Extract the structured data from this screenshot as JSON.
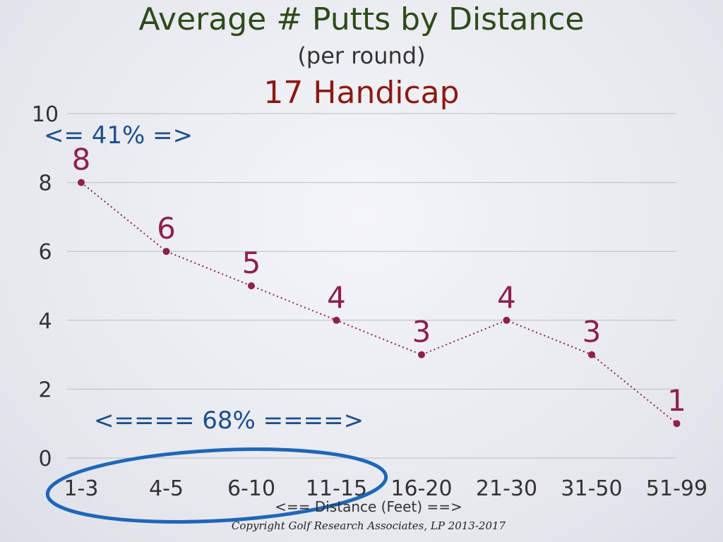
{
  "chart_data": {
    "type": "line",
    "title": "Average # Putts by Distance",
    "subtitle": "(per round)",
    "subtitle2": "17 Handicap",
    "xlabel": "<== Distance (Feet) ==>",
    "ylabel": "",
    "categories": [
      "1-3",
      "4-5",
      "6-10",
      "11-15",
      "16-20",
      "21-30",
      "31-50",
      "51-99"
    ],
    "values": [
      8,
      6,
      5,
      4,
      3,
      4,
      3,
      1
    ],
    "data_labels": [
      "8",
      "6",
      "5",
      "4",
      "3",
      "4",
      "3",
      "1"
    ],
    "yticks": [
      "0",
      "2",
      "4",
      "6",
      "8",
      "10"
    ],
    "ylim": [
      0,
      10
    ],
    "grid": true,
    "annotations": {
      "short_range": "<= 41% =>",
      "mid_range": "<==== 68% ====>"
    },
    "copyright": "Copyright Golf Research Associates, LP 2013-2017",
    "colors": {
      "title": "#2f4a1a",
      "subtitle2": "#8b1a12",
      "line": "#8e2147",
      "data_label": "#8e2147",
      "annotation": "#1f4e8c",
      "ellipse": "#1f66b8",
      "grid": "#b9bcc4"
    }
  }
}
